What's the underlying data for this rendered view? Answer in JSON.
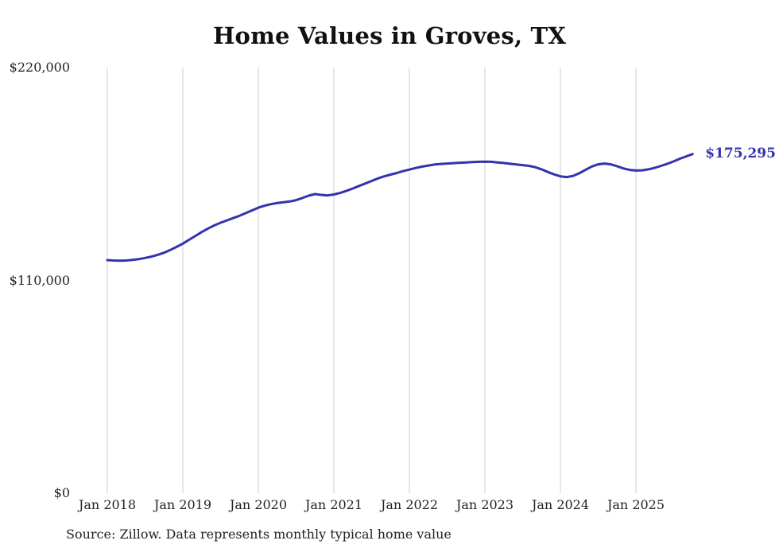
{
  "chart_data": {
    "type": "line",
    "title": "Home Values in Groves, TX",
    "xlabel": "",
    "ylabel": "",
    "ylim": [
      0,
      220000
    ],
    "y_ticks": [
      0,
      110000,
      220000
    ],
    "y_tick_labels": [
      "$0",
      "$110,000",
      "$220,000"
    ],
    "x_tick_labels": [
      "Jan 2018",
      "Jan 2019",
      "Jan 2020",
      "Jan 2021",
      "Jan 2022",
      "Jan 2023",
      "Jan 2024",
      "Jan 2025"
    ],
    "x_start_label": "Jan 2018",
    "x_end_label": "Oct 2025",
    "grid": "vertical-only",
    "legend": "none",
    "line_color": "#3333ad",
    "gridline_color": "#cccccc",
    "end_label": "$175,295",
    "end_value": 175295,
    "source_note": "Source: Zillow. Data represents monthly typical home value",
    "series": [
      {
        "name": "Typical home value (monthly)",
        "values": [
          120500,
          120300,
          120200,
          120300,
          120600,
          121000,
          121600,
          122300,
          123200,
          124300,
          125700,
          127300,
          129000,
          131000,
          133000,
          135000,
          136800,
          138400,
          139800,
          141000,
          142200,
          143400,
          144800,
          146200,
          147600,
          148600,
          149400,
          150000,
          150400,
          150800,
          151500,
          152600,
          153800,
          154600,
          154200,
          153900,
          154400,
          155200,
          156300,
          157500,
          158800,
          160100,
          161400,
          162700,
          163800,
          164700,
          165500,
          166500,
          167300,
          168100,
          168800,
          169400,
          169900,
          170200,
          170400,
          170600,
          170800,
          171000,
          171200,
          171300,
          171400,
          171300,
          171000,
          170700,
          170300,
          169900,
          169600,
          169200,
          168500,
          167400,
          166000,
          164800,
          163800,
          163400,
          164000,
          165400,
          167200,
          168900,
          170000,
          170400,
          170000,
          169000,
          167900,
          167100,
          166800,
          166900,
          167400,
          168200,
          169200,
          170300,
          171500,
          172900,
          174100,
          175295
        ]
      }
    ]
  }
}
